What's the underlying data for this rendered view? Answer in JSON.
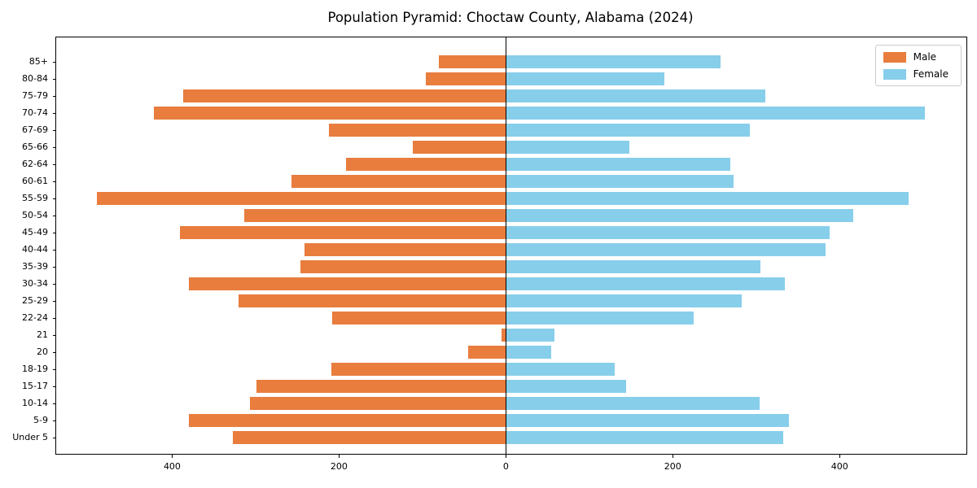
{
  "chart_data": {
    "type": "bar",
    "subtype": "population-pyramid",
    "title": "Population Pyramid: Choctaw County, Alabama (2024)",
    "categories": [
      "85+",
      "80-84",
      "75-79",
      "70-74",
      "67-69",
      "65-66",
      "62-64",
      "60-61",
      "55-59",
      "50-54",
      "45-49",
      "40-44",
      "35-39",
      "30-34",
      "25-29",
      "22-24",
      "21",
      "20",
      "18-19",
      "15-17",
      "10-14",
      "5-9",
      "Under 5"
    ],
    "series": [
      {
        "name": "Male",
        "side": "left",
        "color": "#e87d3e",
        "values": [
          80,
          96,
          387,
          422,
          212,
          112,
          192,
          257,
          490,
          314,
          391,
          241,
          246,
          380,
          320,
          208,
          5,
          45,
          209,
          299,
          307,
          380,
          327
        ]
      },
      {
        "name": "Female",
        "side": "right",
        "color": "#87ceeb",
        "values": [
          257,
          190,
          311,
          502,
          292,
          148,
          269,
          273,
          483,
          416,
          388,
          383,
          305,
          334,
          283,
          225,
          58,
          54,
          130,
          144,
          304,
          339,
          332
        ]
      }
    ],
    "xlabel": "",
    "ylabel": "",
    "x_ticks": {
      "values": [
        -400,
        -200,
        0,
        200,
        400
      ],
      "labels": [
        "400",
        "200",
        "0",
        "200",
        "400"
      ]
    },
    "xlim": [
      -539,
      552
    ],
    "grid": false,
    "zero_line": true,
    "legend_position": "upper right",
    "axis_color": "#000000",
    "background_color": "#ffffff"
  }
}
